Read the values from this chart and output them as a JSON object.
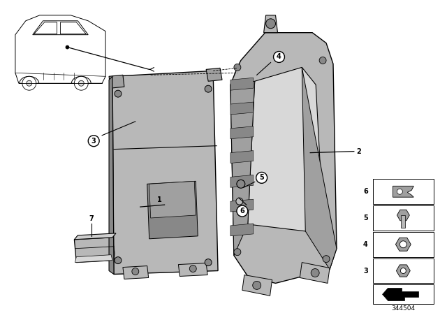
{
  "bg_color": "#ffffff",
  "part_number": "344504",
  "fig_width": 6.4,
  "fig_height": 4.48,
  "dpi": 100,
  "pc": "#b8b8b8",
  "pcl": "#cecece",
  "pcd": "#888888",
  "pch": "#d8d8d8",
  "pcs": "#a0a0a0",
  "lc": "#000000",
  "label_fs": 7,
  "pn_fs": 6.5
}
